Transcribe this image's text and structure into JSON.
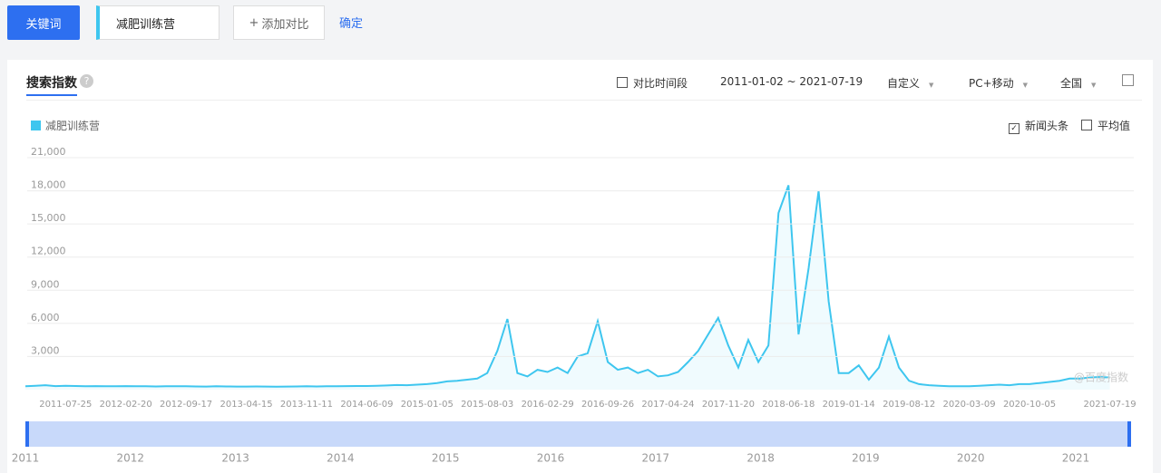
{
  "ui": {
    "keyword_button": "关键词",
    "keyword_input": "减肥训练营",
    "add_compare": "添加对比",
    "confirm": "确定",
    "tab": "搜索指数",
    "compare_period": "对比时间段",
    "date_range": "2011-01-02 ~ 2021-07-19",
    "custom": "自定义",
    "device": "PC+移动",
    "region": "全国",
    "news_headlines": "新闻头条",
    "average": "平均值",
    "watermark": "@百度指数",
    "navigator_years": [
      "2011",
      "2012",
      "2013",
      "2014",
      "2015",
      "2016",
      "2017",
      "2018",
      "2019",
      "2020",
      "2021"
    ]
  },
  "chart_data": {
    "type": "line",
    "categories": [
      null,
      null,
      null,
      null,
      "2011-07-25",
      null,
      null,
      null,
      null,
      null,
      "2012-02-20",
      null,
      null,
      null,
      null,
      null,
      "2012-09-17",
      null,
      null,
      null,
      null,
      null,
      "2013-04-15",
      null,
      null,
      null,
      null,
      null,
      "2013-11-11",
      null,
      null,
      null,
      null,
      null,
      "2014-06-09",
      null,
      null,
      null,
      null,
      null,
      "2015-01-05",
      null,
      null,
      null,
      null,
      null,
      "2015-08-03",
      null,
      null,
      null,
      null,
      null,
      "2016-02-29",
      null,
      null,
      null,
      null,
      null,
      "2016-09-26",
      null,
      null,
      null,
      null,
      null,
      "2017-04-24",
      null,
      null,
      null,
      null,
      null,
      "2017-11-20",
      null,
      null,
      null,
      null,
      null,
      "2018-06-18",
      null,
      null,
      null,
      null,
      null,
      "2019-01-14",
      null,
      null,
      null,
      null,
      null,
      "2019-08-12",
      null,
      null,
      null,
      null,
      null,
      "2020-03-09",
      null,
      null,
      null,
      null,
      null,
      "2020-10-05",
      null,
      null,
      null,
      null,
      null,
      null,
      null,
      "2021-07-19"
    ],
    "series": [
      {
        "name": "减肥训练营",
        "color": "#3ec6ef",
        "values": [
          300,
          350,
          400,
          320,
          350,
          330,
          300,
          320,
          310,
          300,
          320,
          310,
          300,
          290,
          300,
          310,
          300,
          290,
          280,
          300,
          290,
          280,
          280,
          290,
          280,
          270,
          280,
          290,
          300,
          290,
          300,
          310,
          320,
          330,
          330,
          350,
          380,
          420,
          400,
          450,
          500,
          600,
          750,
          800,
          900,
          1000,
          1500,
          3500,
          6400,
          1500,
          1200,
          1800,
          1600,
          2000,
          1500,
          3000,
          3300,
          6200,
          2500,
          1800,
          2000,
          1500,
          1800,
          1200,
          1300,
          1600,
          2500,
          3500,
          5000,
          6500,
          4000,
          2000,
          4500,
          2500,
          4000,
          16000,
          18500,
          5000,
          11000,
          18000,
          8000,
          1500,
          1500,
          2200,
          900,
          2000,
          4800,
          2000,
          800,
          500,
          400,
          350,
          300,
          300,
          300,
          350,
          400,
          450,
          400,
          500,
          500,
          600,
          700,
          800,
          1000,
          1000,
          1100,
          1150,
          1100
        ]
      }
    ],
    "ylim": [
      0,
      21000
    ],
    "yticks": [
      {
        "value": 3000,
        "label": "3,000"
      },
      {
        "value": 6000,
        "label": "6,000"
      },
      {
        "value": 9000,
        "label": "9,000"
      },
      {
        "value": 12000,
        "label": "12,000"
      },
      {
        "value": 15000,
        "label": "15,000"
      },
      {
        "value": 18000,
        "label": "18,000"
      },
      {
        "value": 21000,
        "label": "21,000"
      }
    ],
    "grid": true
  }
}
